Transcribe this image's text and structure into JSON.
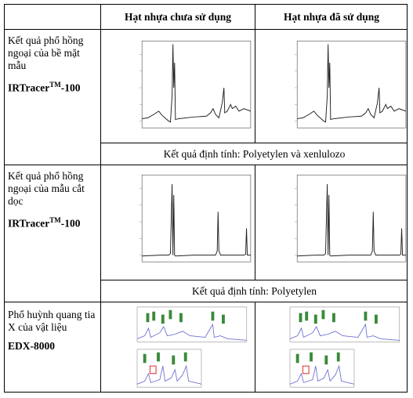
{
  "table": {
    "header": [
      "Hạt nhựa chưa sử dụng",
      "Hạt nhựa đã sử dụng"
    ],
    "rows": [
      {
        "label": "Kết quả phổ hồng ngoại của bề mặt mẫu",
        "instrument": {
          "name": "IRTracer",
          "sup": "TM",
          "suffix": "-100"
        },
        "result": "Kết quả định tính: Polyetylen và xenlulozo"
      },
      {
        "label": "Kết quả phổ hồng ngoại của mẫu cắt dọc",
        "instrument": {
          "name": "IRTracer",
          "sup": "TM",
          "suffix": "-100"
        },
        "result": "Kết quả định tính: Polyetylen"
      },
      {
        "label": "Phổ huỳnh quang tia X của vật liệu",
        "instrument": {
          "name": "EDX-8000"
        }
      }
    ]
  }
}
